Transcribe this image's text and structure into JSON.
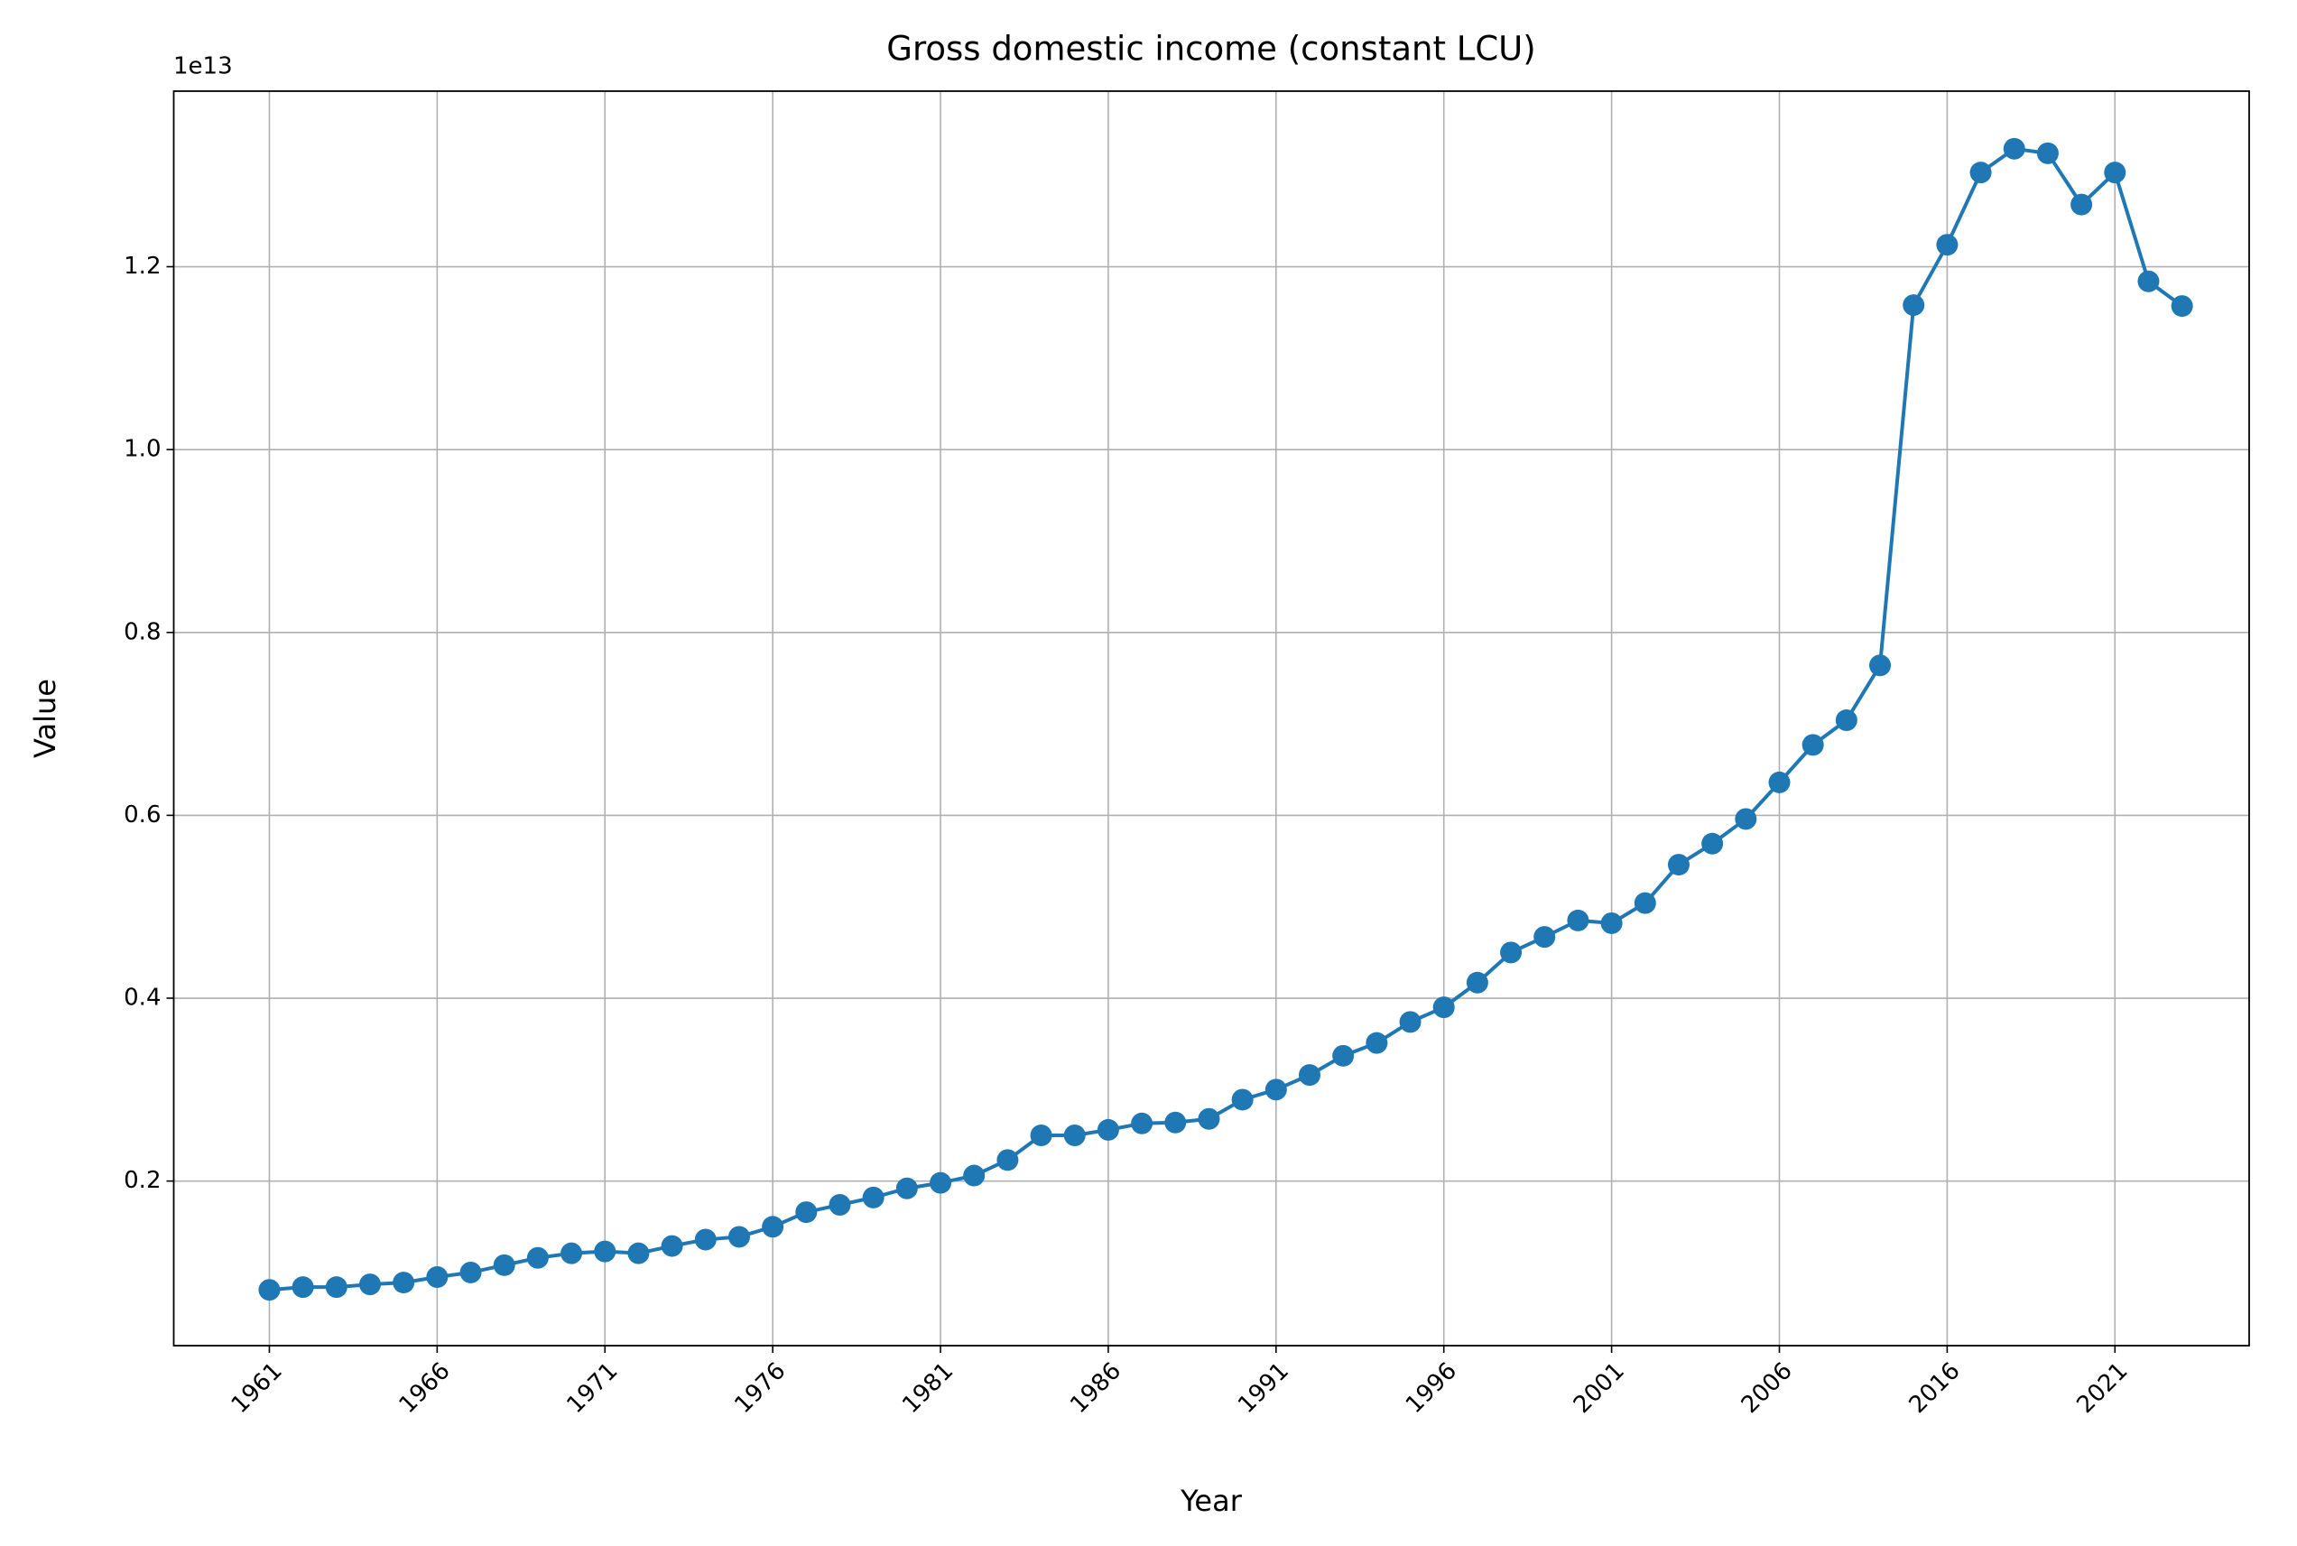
{
  "chart_data": {
    "type": "line",
    "title": "Gross domestic income (constant LCU)",
    "x_label": "Year",
    "y_label": "Value",
    "y_offset_label": "1e13",
    "categories": [
      "1961",
      null,
      null,
      null,
      null,
      "1966",
      null,
      null,
      null,
      null,
      "1971",
      null,
      null,
      null,
      null,
      "1976",
      null,
      null,
      null,
      null,
      "1981",
      null,
      null,
      null,
      null,
      "1986",
      null,
      null,
      null,
      null,
      "1991",
      null,
      null,
      null,
      null,
      "1996",
      null,
      null,
      null,
      null,
      "2001",
      null,
      null,
      null,
      null,
      "2006",
      null,
      null,
      null,
      null,
      "2016",
      null,
      null,
      null,
      null,
      "2021",
      null,
      null
    ],
    "values": [
      0.081,
      0.084,
      0.084,
      0.087,
      0.089,
      0.095,
      0.1,
      0.108,
      0.116,
      0.121,
      0.123,
      0.121,
      0.129,
      0.136,
      0.139,
      0.15,
      0.166,
      0.174,
      0.182,
      0.192,
      0.198,
      0.206,
      0.223,
      0.25,
      0.25,
      0.256,
      0.263,
      0.264,
      0.268,
      0.289,
      0.3,
      0.316,
      0.337,
      0.351,
      0.374,
      0.39,
      0.417,
      0.45,
      0.467,
      0.485,
      0.482,
      0.504,
      0.546,
      0.569,
      0.596,
      0.636,
      0.677,
      0.704,
      0.764,
      1.158,
      1.224,
      1.303,
      1.329,
      1.324,
      1.268,
      1.303,
      1.184,
      1.157
    ],
    "color": "#1f77b4",
    "ylim": [
      0.02,
      1.392
    ],
    "yticks": [
      0.2,
      0.4,
      0.6,
      0.8,
      {
        "value": 1,
        "label": "1.0"
      },
      1.2
    ],
    "grid": true
  }
}
